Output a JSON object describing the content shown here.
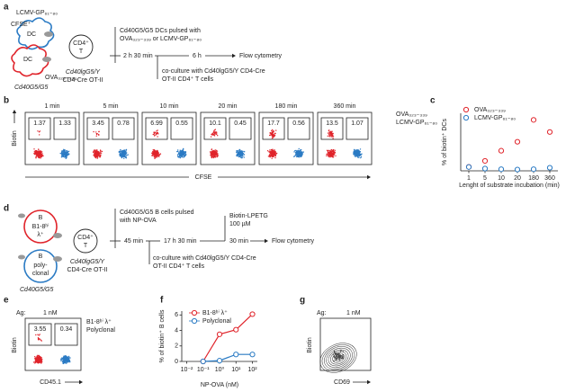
{
  "panel_labels": [
    "a",
    "b",
    "c",
    "d",
    "e",
    "f",
    "g"
  ],
  "a": {
    "lcmv": "LCMV-GP₆₁₋₈₀",
    "cfse": "CFSE⁺",
    "dc": [
      "DC",
      "DC"
    ],
    "ova": "OVA₃₂₃₋₃₃₉",
    "t_cell": [
      "CD4⁺",
      "T"
    ],
    "dc_genotype": "Cd40G5/G5",
    "t_genotype": [
      "Cd40lgG5/Y",
      "CD4-Cre OT-II"
    ],
    "pulse": [
      "Cd40G5/G5 DCs pulsed with",
      "OVA₃₂₃₋₃₃₉ or LCMV-GP₆₁₋₈₀"
    ],
    "time1": "2 h 30 min",
    "time2": "6 h",
    "readout": "Flow cytometry",
    "coculture": [
      "co-culture with Cd40lgG5/Y CD4-Cre",
      "OT-II CD4⁺ T cells"
    ]
  },
  "b": {
    "times": [
      "1 min",
      "5 min",
      "10 min",
      "20 min",
      "180 min",
      "360 min"
    ],
    "gates": [
      [
        1.37,
        1.33
      ],
      [
        3.45,
        0.78
      ],
      [
        6.99,
        0.55
      ],
      [
        10.1,
        0.45
      ],
      [
        17.7,
        0.56
      ],
      [
        13.5,
        1.07
      ]
    ],
    "y_label": "Biotin",
    "x_label": "CFSE",
    "legend": [
      "OVA₃₂₃₋₃₃₉",
      "LCMV-GP₆₁₋₈₀"
    ],
    "colors": [
      "#e0242b",
      "#2b7bc4"
    ]
  },
  "d": {
    "b1": [
      "B",
      "B1-8ʰⁱ",
      "λ⁺"
    ],
    "poly": [
      "B",
      "poly-",
      "clonal"
    ],
    "t_cell": [
      "CD4⁺",
      "T"
    ],
    "t_genotype": [
      "Cd40lgG5/Y",
      "CD4-Cre OT-II"
    ],
    "b_genotype": "Cd40G5/G5",
    "pulse": [
      "Cd40G5/G5 B cells pulsed",
      "with NP-OVA"
    ],
    "time1": "45 min",
    "time2": "17 h 30 min",
    "reagent": [
      "Biotin-LPETG",
      "100 µM"
    ],
    "time3": "30 min",
    "readout": "Flow cytometry",
    "coculture": [
      "co-culture with Cd40lgG5/Y CD4-Cre",
      "OT-II CD4⁺ T cells"
    ]
  },
  "e": {
    "ag": "Ag:",
    "dose": "1 nM",
    "gates": [
      3.55,
      0.34
    ],
    "legend": [
      "B1-8ʰⁱ λ⁺",
      "Polyclonal"
    ],
    "colors": [
      "#e0242b",
      "#2b7bc4"
    ],
    "y_label": "Biotin",
    "x_label": "CD45.1"
  },
  "g": {
    "ag": "Ag:",
    "dose": "1 nM",
    "y_label": "Biotin",
    "x_label": "CD69"
  },
  "chart_data": [
    {
      "type": "scatter",
      "y_label": "% of biotin⁺ DCs",
      "x_label": "Lenght of substrate incubation (min)",
      "categories": [
        "1",
        "5",
        "10",
        "20",
        "180",
        "360"
      ],
      "ylim": [
        0,
        20
      ],
      "series": [
        {
          "name": "OVA₃₂₃₋₃₃₉",
          "color": "#e0242b",
          "values": [
            1.37,
            3.45,
            6.99,
            10.1,
            17.7,
            13.5
          ]
        },
        {
          "name": "LCMV-GP₆₁₋₈₀",
          "color": "#2b7bc4",
          "values": [
            1.33,
            0.78,
            0.55,
            0.45,
            0.56,
            1.07
          ]
        }
      ]
    },
    {
      "type": "line",
      "y_label": "% of biotin⁺ B cells",
      "x_label": "NP-OVA (nM)",
      "x": [
        0.1,
        1,
        10,
        100
      ],
      "log_x": true,
      "xlim": [
        0.005,
        200
      ],
      "xticks": [
        {
          "value": 0.01,
          "label": "10⁻²"
        },
        {
          "value": 0.1,
          "label": "10⁻¹"
        },
        {
          "value": 1,
          "label": "10⁰"
        },
        {
          "value": 10,
          "label": "10¹"
        },
        {
          "value": 100,
          "label": "10²"
        }
      ],
      "ylim": [
        0,
        6.5
      ],
      "yticks": [
        0,
        2,
        4,
        6
      ],
      "series": [
        {
          "name": "B1-8ʰⁱ λ⁺",
          "color": "#e0242b",
          "values": [
            0,
            3.5,
            4.1,
            6.1
          ]
        },
        {
          "name": "Polyclonal",
          "color": "#2b7bc4",
          "values": [
            0,
            0.1,
            0.9,
            0.9
          ]
        }
      ]
    }
  ]
}
